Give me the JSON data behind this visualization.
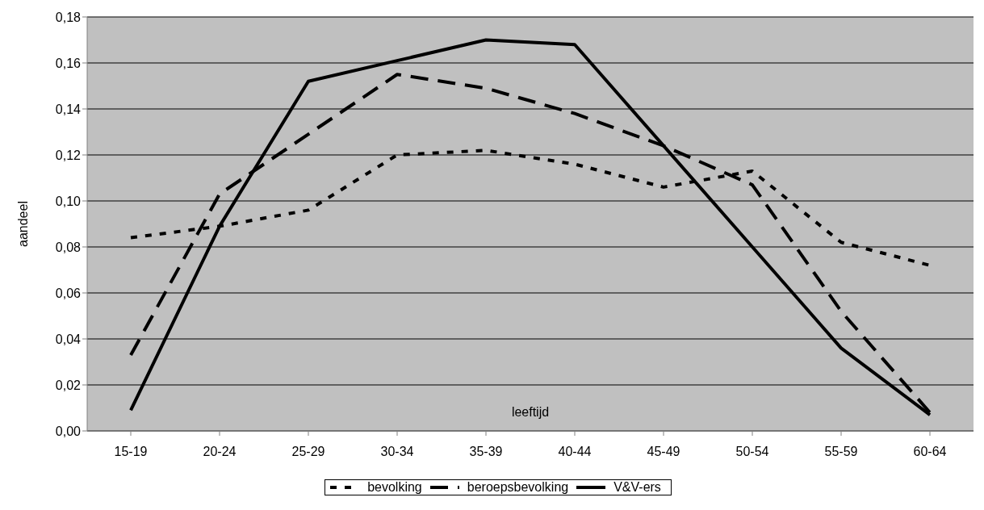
{
  "chart_data": {
    "type": "line",
    "xlabel": "leeftijd",
    "ylabel": "aandeel",
    "categories": [
      "15-19",
      "20-24",
      "25-29",
      "30-34",
      "35-39",
      "40-44",
      "45-49",
      "50-54",
      "55-59",
      "60-64"
    ],
    "series": [
      {
        "name": "bevolking",
        "color": "#000000",
        "line_style": "dotted",
        "values": [
          0.084,
          0.089,
          0.096,
          0.12,
          0.122,
          0.116,
          0.106,
          0.113,
          0.082,
          0.072
        ]
      },
      {
        "name": "beroepsbevolking",
        "color": "#000000",
        "line_style": "dashed",
        "values": [
          0.033,
          0.103,
          0.129,
          0.155,
          0.149,
          0.138,
          0.124,
          0.107,
          0.052,
          0.008
        ]
      },
      {
        "name": "V&V-ers",
        "color": "#000000",
        "line_style": "solid",
        "values": [
          0.009,
          0.089,
          0.152,
          0.161,
          0.17,
          0.168,
          0.124,
          0.08,
          0.036,
          0.007
        ]
      }
    ],
    "ylim": [
      0,
      0.18
    ],
    "yticks": [
      {
        "value": 0,
        "label": "0,00"
      },
      {
        "value": 0.02,
        "label": "0,02"
      },
      {
        "value": 0.04,
        "label": "0,04"
      },
      {
        "value": 0.06,
        "label": "0,06"
      },
      {
        "value": 0.08,
        "label": "0,08"
      },
      {
        "value": 0.1,
        "label": "0,10"
      },
      {
        "value": 0.12,
        "label": "0,12"
      },
      {
        "value": 0.14,
        "label": "0,14"
      },
      {
        "value": 0.16,
        "label": "0,16"
      },
      {
        "value": 0.18,
        "label": "0,18"
      }
    ],
    "grid": "y",
    "legend": "bottom",
    "marker": "none"
  }
}
